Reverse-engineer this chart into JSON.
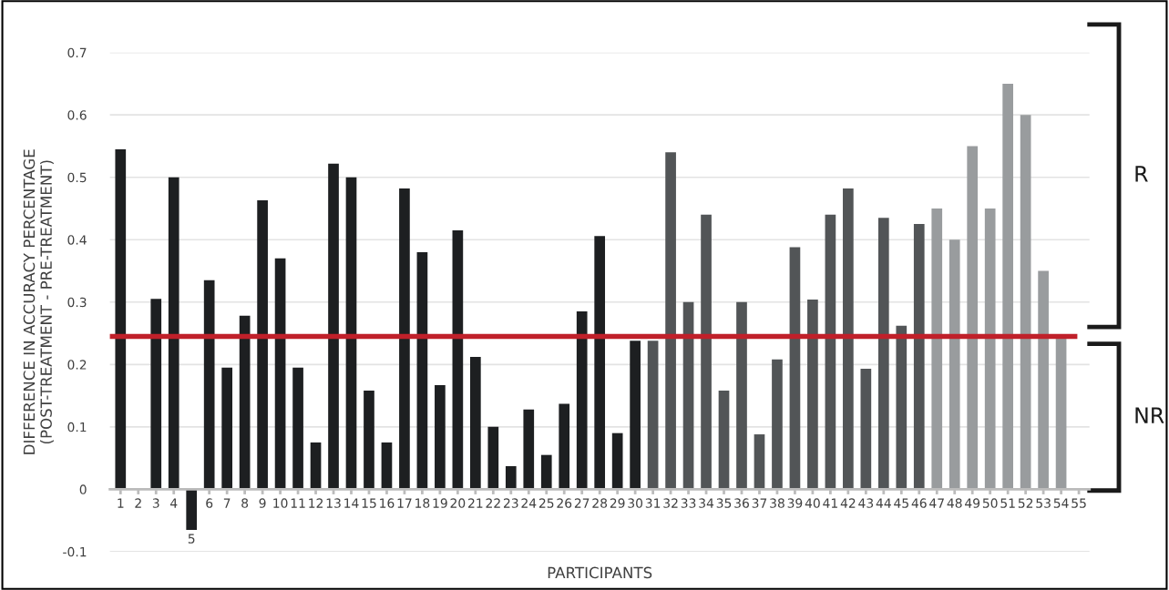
{
  "chart_data": {
    "type": "bar",
    "xlabel": "PARTICIPANTS",
    "ylabel": "DIFFERENCE IN ACCURACY PERCENTAGE\n(POST-TREATMENT - PRE-TREATMENT)",
    "categories": [
      "1",
      "2",
      "3",
      "4",
      "5",
      "6",
      "7",
      "8",
      "9",
      "10",
      "11",
      "12",
      "13",
      "14",
      "15",
      "16",
      "17",
      "18",
      "19",
      "20",
      "21",
      "22",
      "23",
      "24",
      "25",
      "26",
      "27",
      "28",
      "29",
      "30",
      "31",
      "32",
      "33",
      "34",
      "35",
      "36",
      "37",
      "38",
      "39",
      "40",
      "41",
      "42",
      "43",
      "44",
      "45",
      "46",
      "47",
      "48",
      "49",
      "50",
      "51",
      "52",
      "53",
      "54",
      "55"
    ],
    "values": [
      0.545,
      0,
      0.305,
      0.5,
      -0.065,
      0.335,
      0.195,
      0.278,
      0.463,
      0.37,
      0.195,
      0.075,
      0.522,
      0.5,
      0.158,
      0.075,
      0.482,
      0.38,
      0.167,
      0.415,
      0.212,
      0.1,
      0.037,
      0.128,
      0.055,
      0.137,
      0.285,
      0.406,
      0.09,
      0.238,
      0.238,
      0.54,
      0.3,
      0.44,
      0.158,
      0.3,
      0.088,
      0.208,
      0.388,
      0.304,
      0.44,
      0.482,
      0.193,
      0.435,
      0.262,
      0.425,
      0.45,
      0.4,
      0.55,
      0.45,
      0.65,
      0.6,
      0.35,
      0.245,
      0
    ],
    "colors": [
      "#1d1f21",
      "#1d1f21",
      "#1d1f21",
      "#1d1f21",
      "#1d1f21",
      "#1d1f21",
      "#1d1f21",
      "#1d1f21",
      "#1d1f21",
      "#1d1f21",
      "#1d1f21",
      "#1d1f21",
      "#1d1f21",
      "#1d1f21",
      "#1d1f21",
      "#1d1f21",
      "#1d1f21",
      "#1d1f21",
      "#1d1f21",
      "#1d1f21",
      "#1d1f21",
      "#1d1f21",
      "#1d1f21",
      "#1d1f21",
      "#1d1f21",
      "#1d1f21",
      "#1d1f21",
      "#1d1f21",
      "#1d1f21",
      "#1d1f21",
      "#525557",
      "#525557",
      "#525557",
      "#525557",
      "#525557",
      "#525557",
      "#525557",
      "#525557",
      "#525557",
      "#525557",
      "#525557",
      "#525557",
      "#525557",
      "#525557",
      "#525557",
      "#525557",
      "#999c9e",
      "#999c9e",
      "#999c9e",
      "#999c9e",
      "#999c9e",
      "#999c9e",
      "#999c9e",
      "#999c9e",
      "#999c9e"
    ],
    "ylim": [
      -0.1,
      0.7
    ],
    "yticks": [
      -0.1,
      0,
      0.1,
      0.2,
      0.3,
      0.4,
      0.5,
      0.6,
      0.7
    ],
    "grid": "y",
    "ref_lines": [
      {
        "axis": "y",
        "value": 0.245,
        "color": "#c0202a"
      }
    ],
    "annotations": [
      "R",
      "NR"
    ]
  }
}
